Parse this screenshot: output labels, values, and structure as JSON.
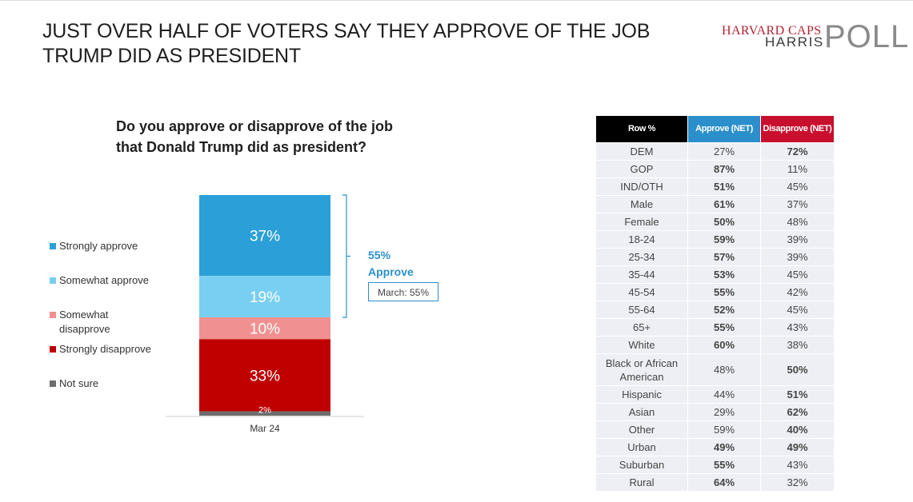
{
  "title": "JUST OVER HALF OF VOTERS SAY THEY APPROVE OF THE JOB\nTRUMP DID AS PRESIDENT",
  "logo": {
    "line1": "HARVARD CAPS",
    "line2": "HARRIS",
    "poll": "POLL"
  },
  "question": "Do you approve or disapprove of the job\nthat Donald Trump did as president?",
  "chart_data": {
    "type": "bar",
    "stacked": true,
    "categories": [
      "Mar 24"
    ],
    "series": [
      {
        "name": "Strongly approve",
        "values": [
          37
        ],
        "color": "#2a9fd8",
        "label": "37%"
      },
      {
        "name": "Somewhat approve",
        "values": [
          19
        ],
        "color": "#79cff2",
        "label": "19%"
      },
      {
        "name": "Somewhat disapprove",
        "values": [
          10
        ],
        "color": "#f09090",
        "label": "10%"
      },
      {
        "name": "Strongly disapprove",
        "values": [
          33
        ],
        "color": "#c00000",
        "label": "33%"
      },
      {
        "name": "Not sure",
        "values": [
          2
        ],
        "color": "#6d6d6d",
        "label": "2%"
      }
    ],
    "legend_position": "left",
    "net": {
      "value": "55%",
      "label": "Approve",
      "comparison": "March: 55%"
    }
  },
  "table": {
    "headers": [
      "Row %",
      "Approve (NET)",
      "Disapprove (NET)"
    ],
    "rows": [
      {
        "label": "DEM",
        "approve": "27%",
        "disapprove": "72%",
        "bold": "disapprove"
      },
      {
        "label": "GOP",
        "approve": "87%",
        "disapprove": "11%",
        "bold": "approve"
      },
      {
        "label": "IND/OTH",
        "approve": "51%",
        "disapprove": "45%",
        "bold": "approve"
      },
      {
        "label": "Male",
        "approve": "61%",
        "disapprove": "37%",
        "bold": "approve"
      },
      {
        "label": "Female",
        "approve": "50%",
        "disapprove": "48%",
        "bold": "approve"
      },
      {
        "label": "18-24",
        "approve": "59%",
        "disapprove": "39%",
        "bold": "approve"
      },
      {
        "label": "25-34",
        "approve": "57%",
        "disapprove": "39%",
        "bold": "approve"
      },
      {
        "label": "35-44",
        "approve": "53%",
        "disapprove": "45%",
        "bold": "approve"
      },
      {
        "label": "45-54",
        "approve": "55%",
        "disapprove": "42%",
        "bold": "approve"
      },
      {
        "label": "55-64",
        "approve": "52%",
        "disapprove": "45%",
        "bold": "approve"
      },
      {
        "label": "65+",
        "approve": "55%",
        "disapprove": "43%",
        "bold": "approve"
      },
      {
        "label": "White",
        "approve": "60%",
        "disapprove": "38%",
        "bold": "approve"
      },
      {
        "label": "Black or African American",
        "approve": "48%",
        "disapprove": "50%",
        "bold": "disapprove"
      },
      {
        "label": "Hispanic",
        "approve": "44%",
        "disapprove": "51%",
        "bold": "disapprove"
      },
      {
        "label": "Asian",
        "approve": "29%",
        "disapprove": "62%",
        "bold": "disapprove"
      },
      {
        "label": "Other",
        "approve": "59%",
        "disapprove": "40%",
        "bold": "disapprove"
      },
      {
        "label": "Urban",
        "approve": "49%",
        "disapprove": "49%",
        "bold": "both"
      },
      {
        "label": "Suburban",
        "approve": "55%",
        "disapprove": "43%",
        "bold": "approve"
      },
      {
        "label": "Rural",
        "approve": "64%",
        "disapprove": "32%",
        "bold": "approve"
      }
    ]
  },
  "colors": {
    "approve_header": "#2b8fcb",
    "disapprove_header": "#c8102e",
    "row_header": "#000000"
  }
}
